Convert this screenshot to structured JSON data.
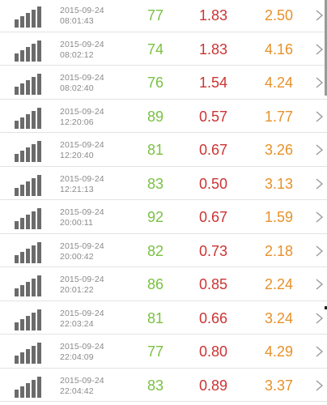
{
  "records": [
    {
      "date": "2015-09-24",
      "time": "08:01:43",
      "value1": "77",
      "value2": "1.83",
      "value3": "2.50",
      "signal_icon": "signal-bars-icon",
      "chevron_icon": "chevron-right-icon"
    },
    {
      "date": "2015-09-24",
      "time": "08:02:12",
      "value1": "74",
      "value2": "1.83",
      "value3": "4.16",
      "signal_icon": "signal-bars-icon",
      "chevron_icon": "chevron-right-icon"
    },
    {
      "date": "2015-09-24",
      "time": "08:02:40",
      "value1": "76",
      "value2": "1.54",
      "value3": "4.24",
      "signal_icon": "signal-bars-icon",
      "chevron_icon": "chevron-right-icon"
    },
    {
      "date": "2015-09-24",
      "time": "12:20:06",
      "value1": "89",
      "value2": "0.57",
      "value3": "1.77",
      "signal_icon": "signal-bars-icon",
      "chevron_icon": "chevron-right-icon"
    },
    {
      "date": "2015-09-24",
      "time": "12:20:40",
      "value1": "81",
      "value2": "0.67",
      "value3": "3.26",
      "signal_icon": "signal-bars-icon",
      "chevron_icon": "chevron-right-icon"
    },
    {
      "date": "2015-09-24",
      "time": "12:21:13",
      "value1": "83",
      "value2": "0.50",
      "value3": "3.13",
      "signal_icon": "signal-bars-icon",
      "chevron_icon": "chevron-right-icon"
    },
    {
      "date": "2015-09-24",
      "time": "20:00:11",
      "value1": "92",
      "value2": "0.67",
      "value3": "1.59",
      "signal_icon": "signal-bars-icon",
      "chevron_icon": "chevron-right-icon"
    },
    {
      "date": "2015-09-24",
      "time": "20:00:42",
      "value1": "82",
      "value2": "0.73",
      "value3": "2.18",
      "signal_icon": "signal-bars-icon",
      "chevron_icon": "chevron-right-icon"
    },
    {
      "date": "2015-09-24",
      "time": "20:01:22",
      "value1": "86",
      "value2": "0.85",
      "value3": "2.24",
      "signal_icon": "signal-bars-icon",
      "chevron_icon": "chevron-right-icon"
    },
    {
      "date": "2015-09-24",
      "time": "22:03:24",
      "value1": "81",
      "value2": "0.66",
      "value3": "3.24",
      "signal_icon": "signal-bars-icon",
      "chevron_icon": "chevron-right-icon"
    },
    {
      "date": "2015-09-24",
      "time": "22:04:09",
      "value1": "77",
      "value2": "0.80",
      "value3": "4.29",
      "signal_icon": "signal-bars-icon",
      "chevron_icon": "chevron-right-icon"
    },
    {
      "date": "2015-09-24",
      "time": "22:04:42",
      "value1": "83",
      "value2": "0.89",
      "value3": "3.37",
      "signal_icon": "signal-bars-icon",
      "chevron_icon": "chevron-right-icon"
    }
  ],
  "colors": {
    "value1": "#7ac142",
    "value2": "#cc3333",
    "value3": "#e8912a",
    "timestamp": "#8a8a8a",
    "icon": "#6b6b6b",
    "divider": "#e3e3e3"
  }
}
